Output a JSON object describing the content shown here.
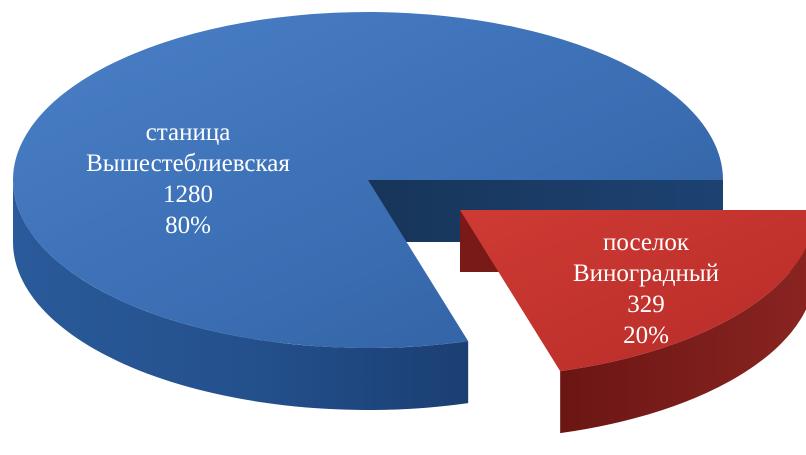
{
  "chart_data": {
    "type": "pie",
    "style": "3d-exploded",
    "title": "",
    "legend": "none",
    "slices": [
      {
        "label_lines": [
          "станица",
          "Вышестеблиевская"
        ],
        "value": 1280,
        "value_text": "1280",
        "percent": 80,
        "percent_text": "80%",
        "color": "#3d72b8",
        "side_color": "#1f4a82",
        "exploded": false
      },
      {
        "label_lines": [
          "поселок",
          "Виноградный"
        ],
        "value": 329,
        "value_text": "329",
        "percent": 20,
        "percent_text": "20%",
        "color": "#c83530",
        "side_color": "#7a1e1c",
        "exploded": true
      }
    ]
  }
}
